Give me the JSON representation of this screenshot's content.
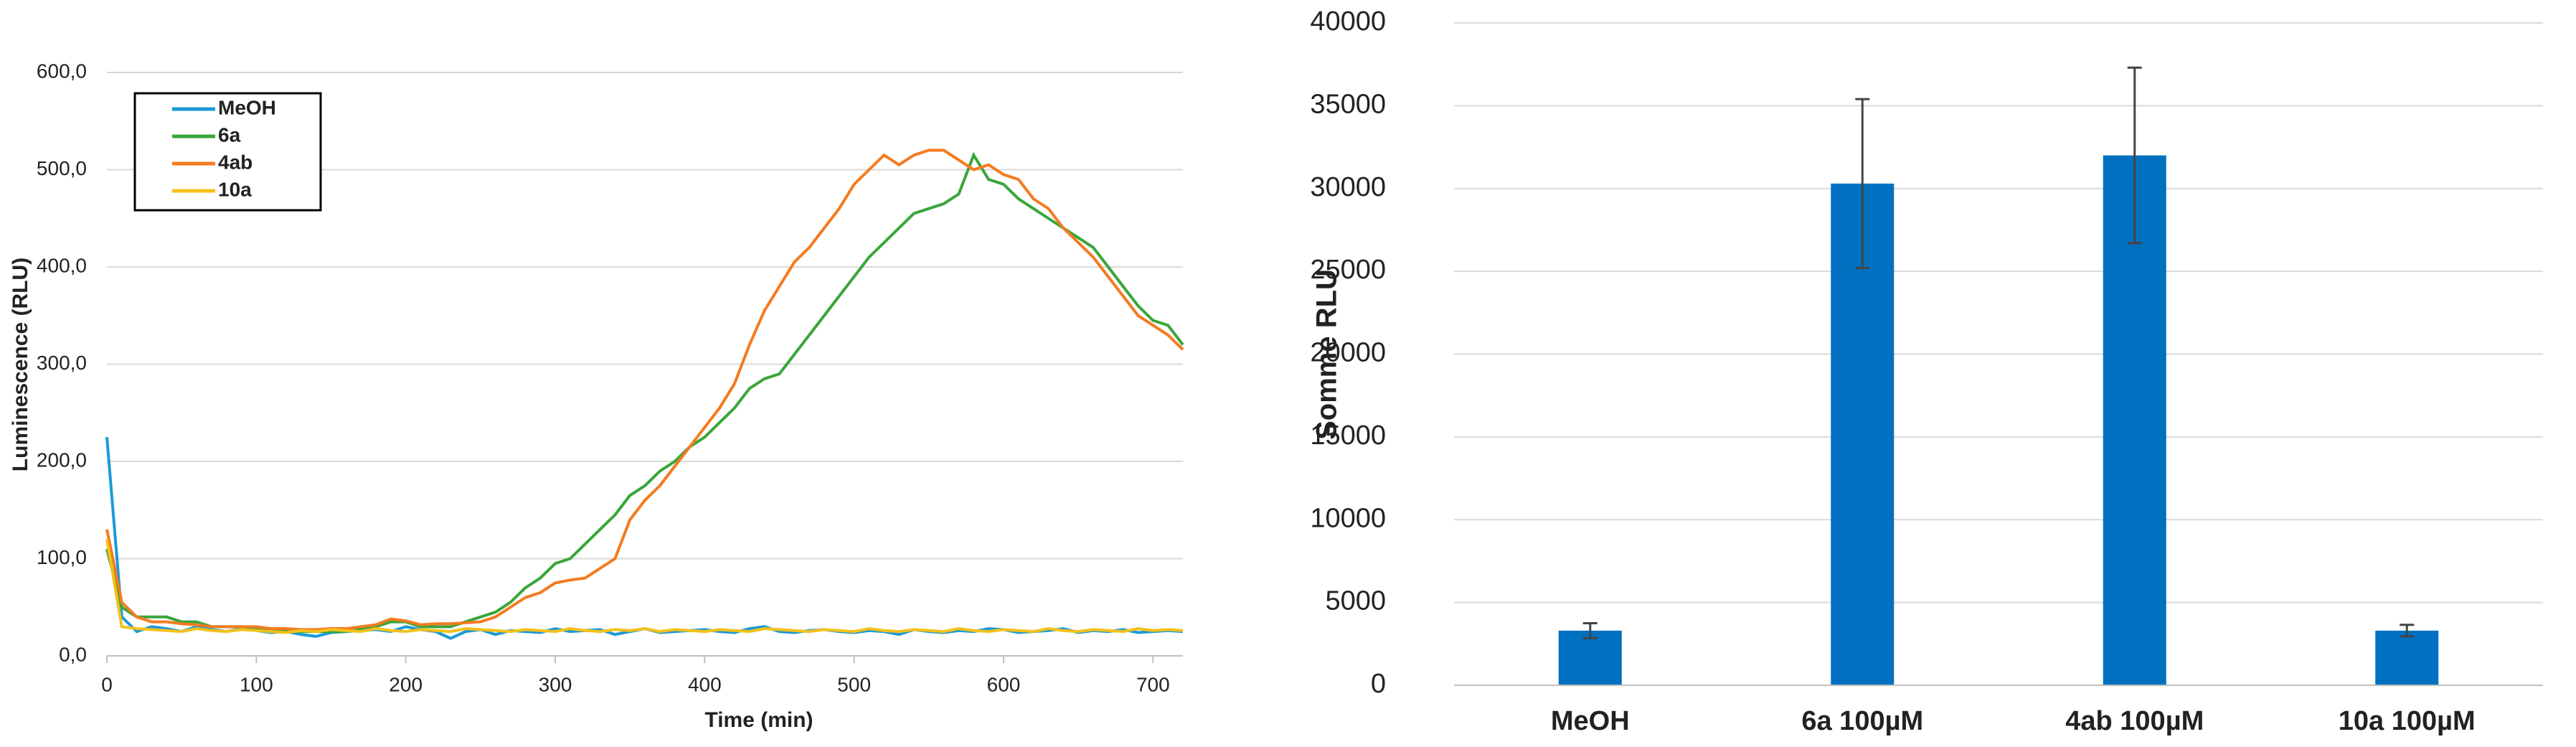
{
  "chart_data": [
    {
      "type": "line",
      "xlabel": "Time (min)",
      "ylabel": "Luminescence  (RLU)",
      "x": [
        0,
        10,
        20,
        30,
        40,
        50,
        60,
        70,
        80,
        90,
        100,
        110,
        120,
        130,
        140,
        150,
        160,
        170,
        180,
        190,
        200,
        210,
        220,
        230,
        240,
        250,
        260,
        270,
        280,
        290,
        300,
        310,
        320,
        330,
        340,
        350,
        360,
        370,
        380,
        390,
        400,
        410,
        420,
        430,
        440,
        450,
        460,
        470,
        480,
        490,
        500,
        510,
        520,
        530,
        540,
        550,
        560,
        570,
        580,
        590,
        600,
        610,
        620,
        630,
        640,
        650,
        660,
        670,
        680,
        690,
        700,
        710,
        720
      ],
      "xlim": [
        0,
        720
      ],
      "xticks": [
        0,
        100,
        200,
        300,
        400,
        500,
        600,
        700
      ],
      "ylim": [
        0,
        600
      ],
      "yticks": [
        {
          "value": 0,
          "label": "0,0"
        },
        {
          "value": 100,
          "label": "100,0"
        },
        {
          "value": 200,
          "label": "200,0"
        },
        {
          "value": 300,
          "label": "300,0"
        },
        {
          "value": 400,
          "label": "400,0"
        },
        {
          "value": 500,
          "label": "500,0"
        },
        {
          "value": 600,
          "label": "600,0"
        }
      ],
      "grid": true,
      "legend": "upper left",
      "series": [
        {
          "name": "MeOH",
          "color": "#1b9ad6",
          "values": [
            225,
            40,
            25,
            30,
            28,
            25,
            30,
            27,
            25,
            28,
            26,
            24,
            25,
            22,
            20,
            24,
            25,
            26,
            27,
            25,
            30,
            27,
            25,
            18,
            25,
            27,
            22,
            26,
            25,
            24,
            28,
            25,
            26,
            27,
            22,
            25,
            28,
            24,
            25,
            26,
            27,
            25,
            24,
            28,
            30,
            25,
            24,
            26,
            27,
            25,
            24,
            26,
            25,
            22,
            27,
            25,
            24,
            26,
            25,
            28,
            27,
            24,
            25,
            26,
            28,
            24,
            26,
            25,
            27,
            24,
            25,
            26,
            25
          ]
        },
        {
          "name": "6a",
          "color": "#3aa53a",
          "values": [
            110,
            50,
            40,
            40,
            40,
            35,
            35,
            30,
            30,
            30,
            28,
            28,
            25,
            25,
            25,
            25,
            25,
            28,
            30,
            35,
            35,
            30,
            30,
            30,
            35,
            40,
            45,
            55,
            70,
            80,
            95,
            100,
            115,
            130,
            145,
            165,
            175,
            190,
            200,
            215,
            225,
            240,
            255,
            275,
            285,
            290,
            310,
            330,
            350,
            370,
            390,
            410,
            425,
            440,
            455,
            460,
            465,
            475,
            515,
            490,
            485,
            470,
            460,
            450,
            440,
            430,
            420,
            400,
            380,
            360,
            345,
            340,
            320
          ]
        },
        {
          "name": "4ab",
          "color": "#f47b20",
          "values": [
            130,
            55,
            40,
            35,
            35,
            33,
            32,
            30,
            30,
            30,
            30,
            28,
            28,
            27,
            27,
            28,
            28,
            30,
            32,
            38,
            36,
            32,
            33,
            33,
            34,
            35,
            40,
            50,
            60,
            65,
            75,
            78,
            80,
            90,
            100,
            140,
            160,
            175,
            195,
            215,
            235,
            255,
            280,
            320,
            355,
            380,
            405,
            420,
            440,
            460,
            485,
            500,
            515,
            505,
            515,
            520,
            520,
            510,
            500,
            505,
            495,
            490,
            470,
            460,
            440,
            425,
            410,
            390,
            370,
            350,
            340,
            330,
            315
          ]
        },
        {
          "name": "10a",
          "color": "#f5c11a",
          "values": [
            120,
            30,
            28,
            27,
            26,
            25,
            28,
            26,
            25,
            27,
            26,
            25,
            24,
            26,
            25,
            27,
            26,
            25,
            28,
            26,
            25,
            27,
            26,
            25,
            28,
            27,
            26,
            25,
            27,
            26,
            25,
            28,
            26,
            25,
            27,
            26,
            28,
            25,
            27,
            26,
            25,
            27,
            26,
            25,
            28,
            27,
            26,
            25,
            27,
            26,
            25,
            28,
            26,
            25,
            27,
            26,
            25,
            28,
            26,
            25,
            27,
            26,
            25,
            28,
            26,
            25,
            27,
            26,
            25,
            28,
            26,
            27,
            26
          ]
        }
      ]
    },
    {
      "type": "bar",
      "ylabel": "Somme RLU",
      "categories": [
        "MeOH",
        "6a 100µM",
        "4ab 100µM",
        "10a 100µM"
      ],
      "values": [
        3300,
        30300,
        32000,
        3300
      ],
      "errors": [
        450,
        5100,
        5300,
        350
      ],
      "color": "#0070c0",
      "ylim": [
        0,
        40000
      ],
      "yticks": [
        0,
        5000,
        10000,
        15000,
        20000,
        25000,
        30000,
        35000,
        40000
      ],
      "grid": true
    }
  ]
}
